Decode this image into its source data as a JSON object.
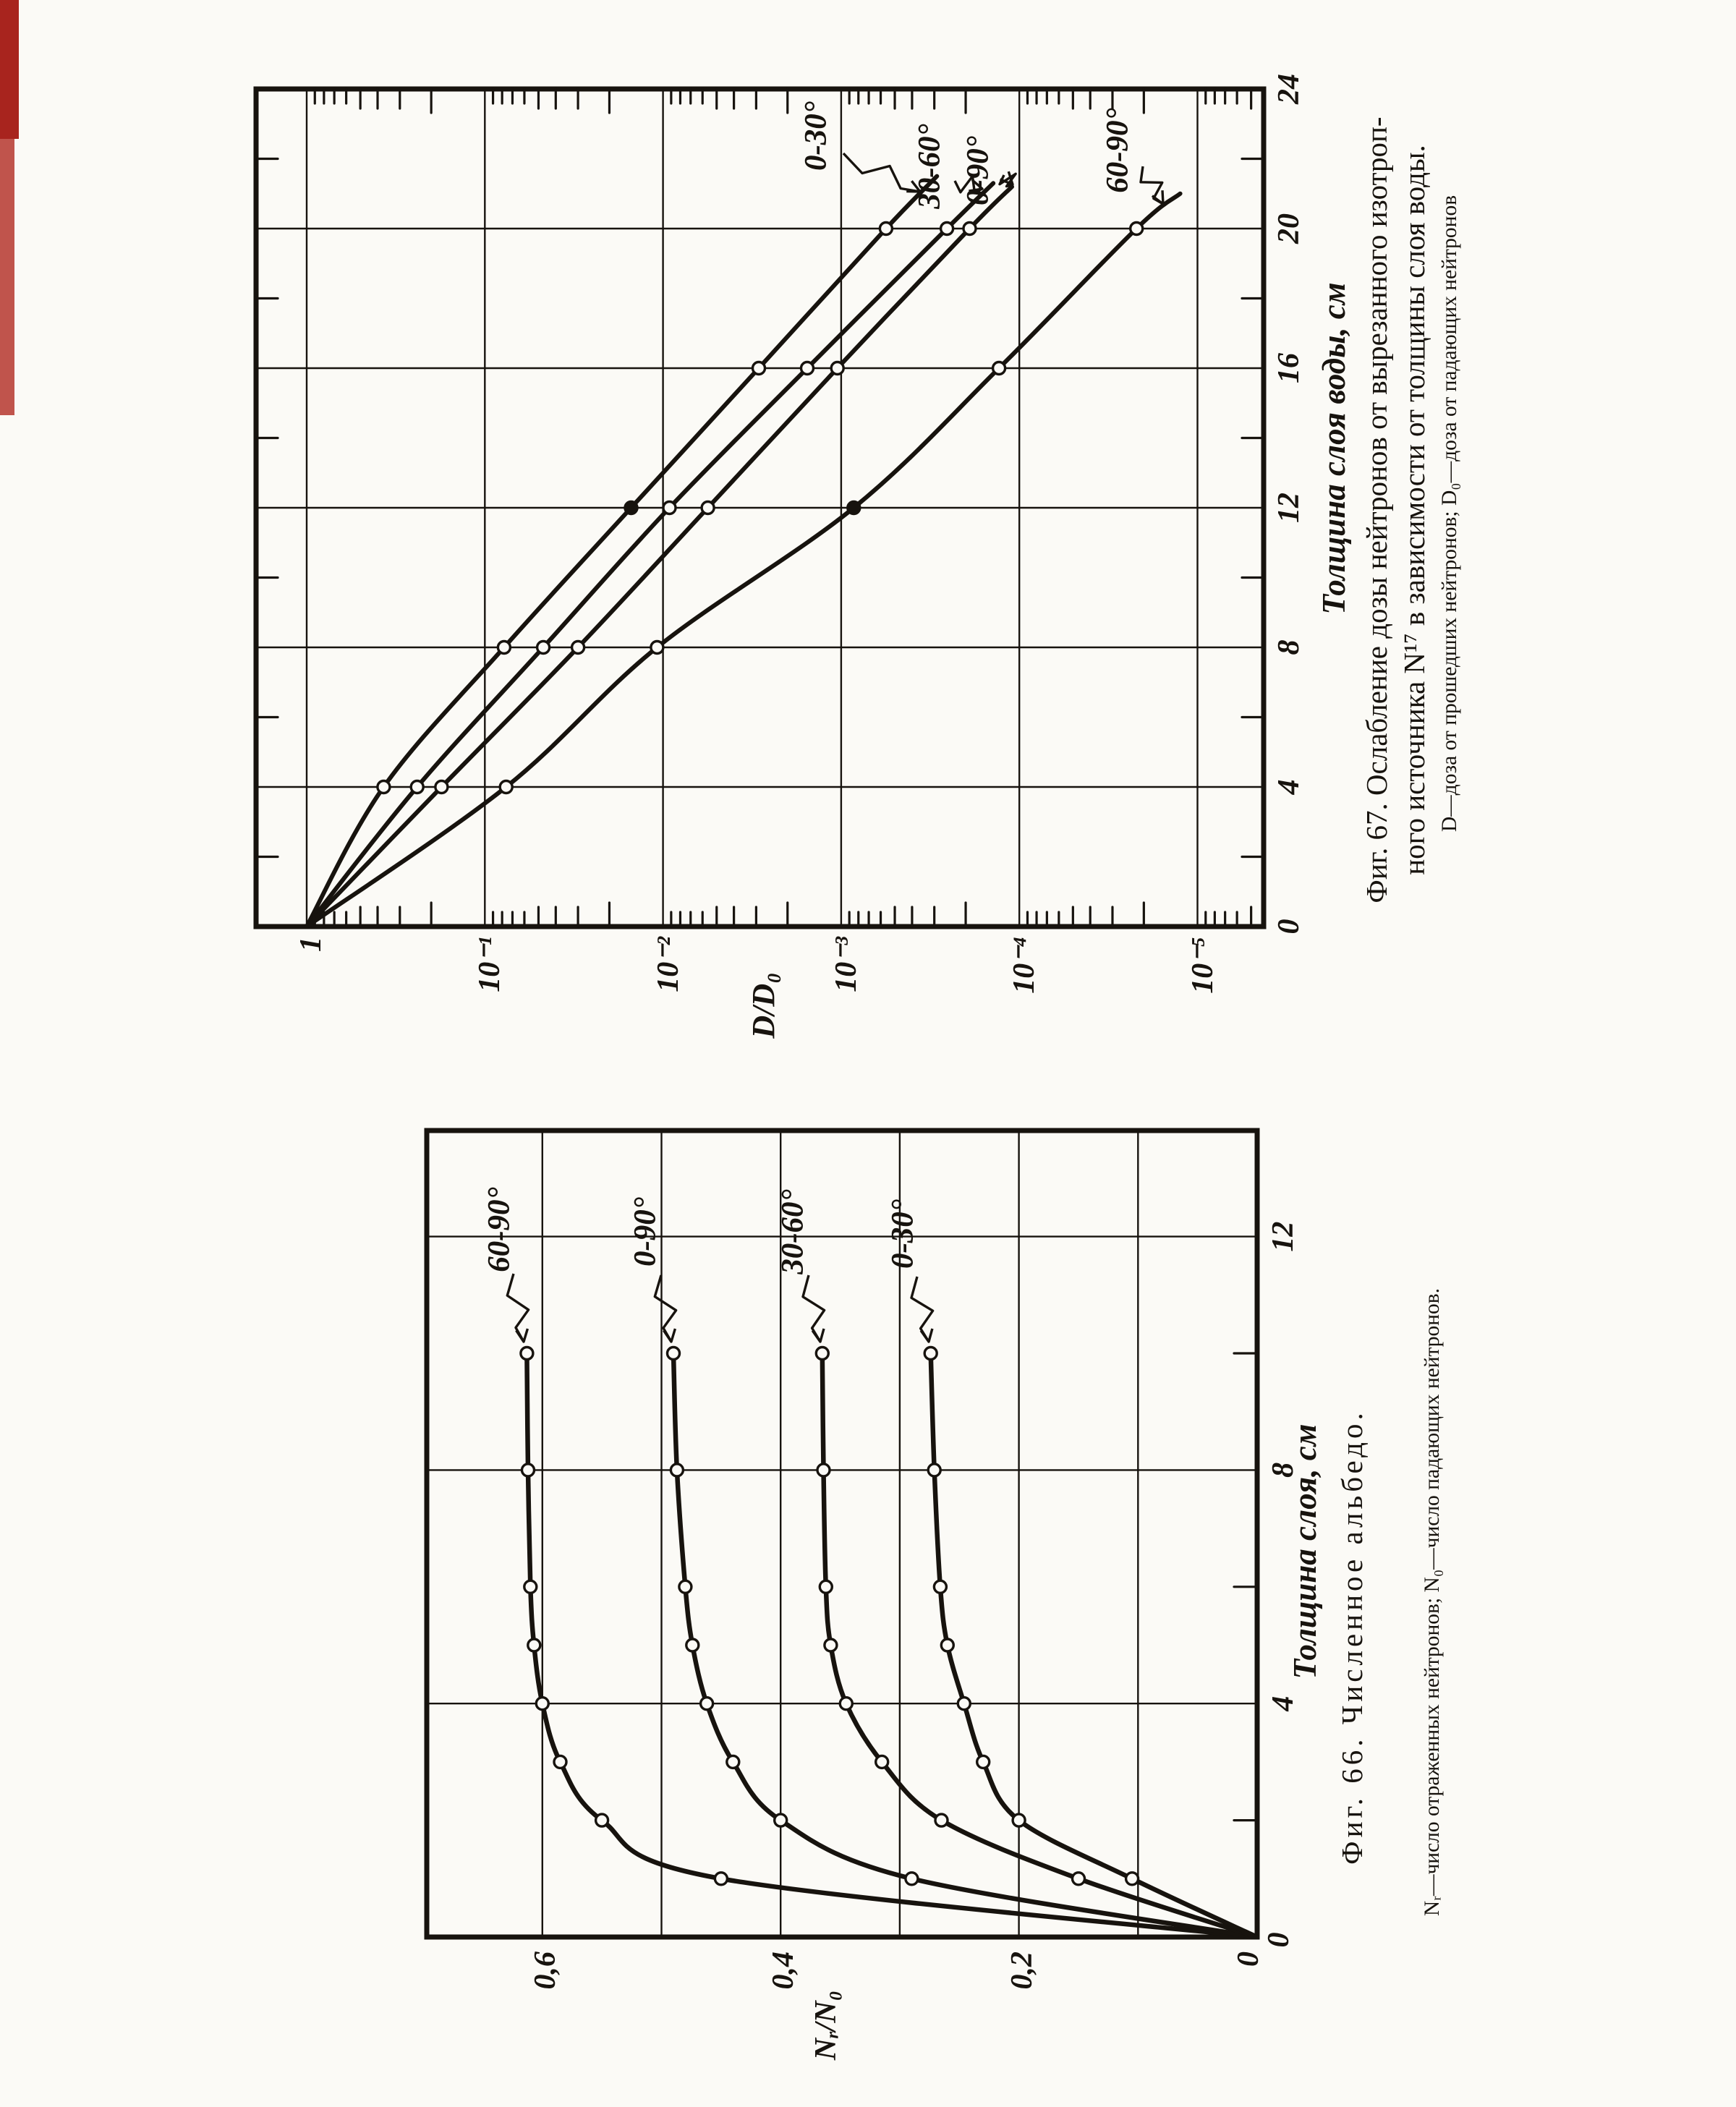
{
  "page": {
    "kind": "scanned book page with two rotated figures",
    "background_color": "#fbfaf6",
    "ink_color": "#17130e",
    "scan_artifact_color": "#a8241e"
  },
  "chart_data": [
    {
      "id": "fig67",
      "type": "line",
      "y_scale": "log",
      "title": "Фиг. 67. Ослабление дозы нейтронов от вырезанного изотропного источника N¹⁷ в зависимости от толщины слоя воды.",
      "caption_lines": [
        "Фиг. 67. Ослабление дозы нейтронов от вырезанного изотроп-",
        "ного источника N¹⁷ в зависимости от толщины слоя воды.",
        "D—доза от прошедших нейтронов;  D₀—доза от падающих нейтронов"
      ],
      "xlabel": "Толщина слоя воды, см",
      "ylabel": "D/D₀",
      "xlim": [
        0,
        24
      ],
      "x_ticks": [
        0,
        4,
        8,
        12,
        16,
        20,
        24
      ],
      "x_grid": [
        4,
        8,
        12,
        16,
        20
      ],
      "x_minor_ticks": [
        2,
        6,
        10,
        14,
        18,
        22
      ],
      "y_tick_labels": [
        "1",
        "10⁻¹",
        "10⁻²",
        "10⁻³",
        "10⁻⁴",
        "10⁻⁵"
      ],
      "y_decades": [
        0,
        1,
        2,
        3,
        4,
        5
      ],
      "ylim_log10": [
        0.28,
        -5.37
      ],
      "grid": true,
      "legend_position": "labels-with-arrows-on-curves",
      "series": [
        {
          "name": "0-30°",
          "points": [
            [
              0,
              1
            ],
            [
              4,
              0.37
            ],
            [
              8,
              0.078
            ],
            [
              12,
              0.0151
            ],
            [
              16,
              0.0029
            ],
            [
              20,
              0.00056
            ],
            [
              21.5,
              0.00029
            ]
          ],
          "marker_range": [
            1,
            5
          ]
        },
        {
          "name": "30-60°",
          "points": [
            [
              0,
              1
            ],
            [
              4,
              0.24
            ],
            [
              8,
              0.047
            ],
            [
              12,
              0.0092
            ],
            [
              16,
              0.00155
            ],
            [
              20,
              0.000255
            ],
            [
              21.3,
              0.00014
            ]
          ],
          "marker_range": [
            1,
            5
          ]
        },
        {
          "name": "0-90°",
          "points": [
            [
              0,
              1
            ],
            [
              4,
              0.175
            ],
            [
              8,
              0.03
            ],
            [
              12,
              0.0056
            ],
            [
              16,
              0.00105
            ],
            [
              20,
              0.00019
            ],
            [
              21.2,
              0.00011
            ]
          ],
          "marker_range": [
            1,
            5
          ]
        },
        {
          "name": "60-90°",
          "points": [
            [
              0,
              1
            ],
            [
              4,
              0.076
            ],
            [
              8,
              0.0108
            ],
            [
              12,
              0.00085
            ],
            [
              16,
              0.00013
            ],
            [
              20,
              2.2e-05
            ],
            [
              21,
              1.25e-05
            ]
          ],
          "marker_range": [
            1,
            5
          ]
        }
      ],
      "filled_markers": [
        [
          0,
          12
        ],
        [
          3,
          12
        ]
      ]
    },
    {
      "id": "fig66",
      "type": "line",
      "y_scale": "linear",
      "title": "Фиг. 66. Численное альбедо.",
      "caption": "Фиг. 66.  Численное  альбедо.",
      "footnote": "Nᵣ—число отраженных нейтронов; N₀—число падающих нейтронов.",
      "xlabel": "Толщина слоя, см",
      "ylabel": "Nᵣ/N₀",
      "xlim": [
        0,
        13.8
      ],
      "x_ticks": [
        4,
        8,
        12
      ],
      "x_zero_label": "0",
      "x_grid": [
        4,
        8,
        12
      ],
      "x_minor_ticks": [
        2,
        6,
        10
      ],
      "ylim": [
        0,
        0.7
      ],
      "y_ticks": [
        {
          "label": "0,6",
          "v": 0.6
        },
        {
          "label": "0,4",
          "v": 0.4
        },
        {
          "label": "0,2",
          "v": 0.2
        },
        {
          "label": "0",
          "v": 0
        }
      ],
      "y_grid": [
        0.1,
        0.2,
        0.3,
        0.4,
        0.5,
        0.6
      ],
      "grid": true,
      "legend_position": "labels-with-arrows-on-curves",
      "series": [
        {
          "name": "60-90°",
          "points": [
            [
              0,
              0
            ],
            [
              1,
              0.45
            ],
            [
              2,
              0.55
            ],
            [
              3,
              0.585
            ],
            [
              4,
              0.6
            ],
            [
              5,
              0.607
            ],
            [
              6,
              0.61
            ],
            [
              8,
              0.612
            ],
            [
              10,
              0.613
            ]
          ],
          "marker_range": [
            1,
            8
          ]
        },
        {
          "name": "0-90°",
          "points": [
            [
              0,
              0
            ],
            [
              1,
              0.29
            ],
            [
              2,
              0.4
            ],
            [
              3,
              0.44
            ],
            [
              4,
              0.462
            ],
            [
              5,
              0.474
            ],
            [
              6,
              0.48
            ],
            [
              8,
              0.487
            ],
            [
              10,
              0.49
            ]
          ],
          "marker_range": [
            1,
            8
          ]
        },
        {
          "name": "30-60°",
          "points": [
            [
              0,
              0
            ],
            [
              1,
              0.15
            ],
            [
              2,
              0.265
            ],
            [
              3,
              0.315
            ],
            [
              4,
              0.345
            ],
            [
              5,
              0.358
            ],
            [
              6,
              0.362
            ],
            [
              8,
              0.364
            ],
            [
              10,
              0.365
            ]
          ],
          "marker_range": [
            1,
            8
          ]
        },
        {
          "name": "0-30°",
          "points": [
            [
              0,
              0
            ],
            [
              1,
              0.105
            ],
            [
              2,
              0.2
            ],
            [
              3,
              0.23
            ],
            [
              4,
              0.246
            ],
            [
              5,
              0.26
            ],
            [
              6,
              0.266
            ],
            [
              8,
              0.271
            ],
            [
              10,
              0.274
            ]
          ],
          "marker_range": [
            1,
            8
          ]
        }
      ],
      "filled_markers": []
    }
  ]
}
